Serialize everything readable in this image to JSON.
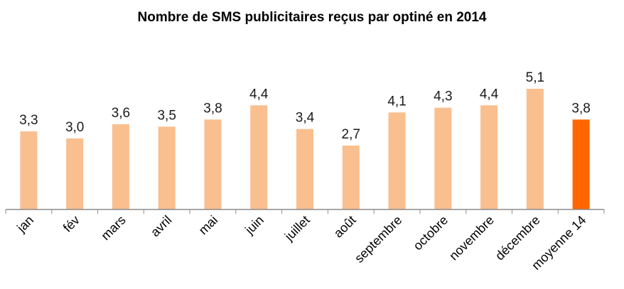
{
  "chart_data": {
    "type": "bar",
    "title": "Nombre de SMS publicitaires reçus par optiné en 2014",
    "categories": [
      "jan",
      "fév",
      "mars",
      "avril",
      "mai",
      "juin",
      "juillet",
      "août",
      "septembre",
      "octobre",
      "novembre",
      "décembre",
      "moyenne 14"
    ],
    "values": [
      3.3,
      3.0,
      3.6,
      3.5,
      3.8,
      4.4,
      3.4,
      2.7,
      4.1,
      4.3,
      4.4,
      5.1,
      3.8
    ],
    "value_labels": [
      "3,3",
      "3,0",
      "3,6",
      "3,5",
      "3,8",
      "4,4",
      "3,4",
      "2,7",
      "4,1",
      "4,3",
      "4,4",
      "5,1",
      "3,8"
    ],
    "highlighted_category": "moyenne 14",
    "xlabel": "",
    "ylabel": "",
    "ylim": [
      0,
      5.1
    ],
    "grid": false,
    "legend": "none",
    "colors": {
      "bar": "#F9BF8F",
      "highlight": "#FF6600",
      "axis": "#8c8c8c"
    }
  }
}
